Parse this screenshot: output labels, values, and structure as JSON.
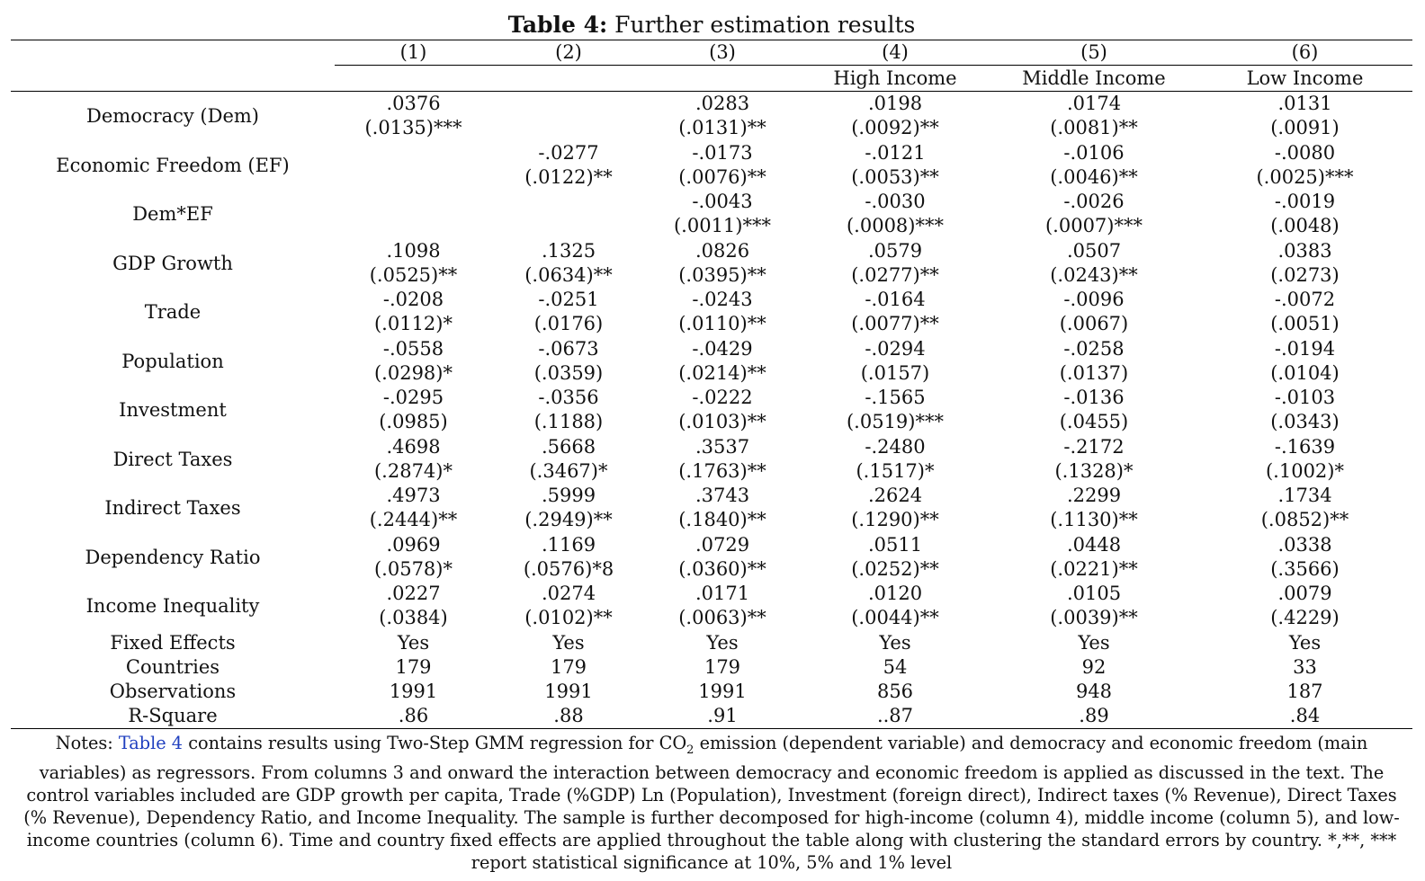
{
  "title": {
    "bold": "Table 4:",
    "rest": " Further estimation results"
  },
  "columns": [
    "(1)",
    "(2)",
    "(3)",
    "(4)",
    "(5)",
    "(6)"
  ],
  "subheaders": [
    "",
    "",
    "",
    "High Income",
    "Middle Income",
    "Low Income"
  ],
  "rows": [
    {
      "label": "Democracy (Dem)",
      "cells": [
        [
          ".0376",
          "(.0135)***"
        ],
        [
          "",
          ""
        ],
        [
          ".0283",
          "(.0131)**"
        ],
        [
          ".0198",
          "(.0092)**"
        ],
        [
          ".0174",
          "(.0081)**"
        ],
        [
          ".0131",
          "(.0091)"
        ]
      ]
    },
    {
      "label": "Economic Freedom (EF)",
      "cells": [
        [
          "",
          ""
        ],
        [
          "-.0277",
          "(.0122)**"
        ],
        [
          "-.0173",
          "(.0076)**"
        ],
        [
          "-.0121",
          "(.0053)**"
        ],
        [
          "-.0106",
          "(.0046)**"
        ],
        [
          "-.0080",
          "(.0025)***"
        ]
      ]
    },
    {
      "label": "Dem*EF",
      "cells": [
        [
          "",
          ""
        ],
        [
          "",
          ""
        ],
        [
          "-.0043",
          "(.0011)***"
        ],
        [
          "-.0030",
          "(.0008)***"
        ],
        [
          "-.0026",
          "(.0007)***"
        ],
        [
          "-.0019",
          "(.0048)"
        ]
      ]
    },
    {
      "label": "GDP Growth",
      "cells": [
        [
          ".1098",
          "(.0525)**"
        ],
        [
          ".1325",
          "(.0634)**"
        ],
        [
          ".0826",
          "(.0395)**"
        ],
        [
          ".0579",
          "(.0277)**"
        ],
        [
          ".0507",
          "(.0243)**"
        ],
        [
          ".0383",
          "(.0273)"
        ]
      ]
    },
    {
      "label": "Trade",
      "cells": [
        [
          "-.0208",
          "(.0112)*"
        ],
        [
          "-.0251",
          "(.0176)"
        ],
        [
          "-.0243",
          "(.0110)**"
        ],
        [
          "-.0164",
          "(.0077)**"
        ],
        [
          "-.0096",
          "(.0067)"
        ],
        [
          "-.0072",
          "(.0051)"
        ]
      ]
    },
    {
      "label": "Population",
      "cells": [
        [
          "-.0558",
          "(.0298)*"
        ],
        [
          "-.0673",
          "(.0359)"
        ],
        [
          "-.0429",
          "(.0214)**"
        ],
        [
          "-.0294",
          "(.0157)"
        ],
        [
          "-.0258",
          "(.0137)"
        ],
        [
          "-.0194",
          "(.0104)"
        ]
      ]
    },
    {
      "label": "Investment",
      "cells": [
        [
          "-.0295",
          "(.0985)"
        ],
        [
          "-.0356",
          "(.1188)"
        ],
        [
          "-.0222",
          "(.0103)**"
        ],
        [
          "-.1565",
          "(.0519)***"
        ],
        [
          "-.0136",
          "(.0455)"
        ],
        [
          "-.0103",
          "(.0343)"
        ]
      ]
    },
    {
      "label": "Direct Taxes",
      "cells": [
        [
          ".4698",
          "(.2874)*"
        ],
        [
          ".5668",
          "(.3467)*"
        ],
        [
          ".3537",
          "(.1763)**"
        ],
        [
          "-.2480",
          "(.1517)*"
        ],
        [
          "-.2172",
          "(.1328)*"
        ],
        [
          "-.1639",
          "(.1002)*"
        ]
      ]
    },
    {
      "label": "Indirect Taxes",
      "cells": [
        [
          ".4973",
          "(.2444)**"
        ],
        [
          ".5999",
          "(.2949)**"
        ],
        [
          ".3743",
          "(.1840)**"
        ],
        [
          ".2624",
          "(.1290)**"
        ],
        [
          ".2299",
          "(.1130)**"
        ],
        [
          ".1734",
          "(.0852)**"
        ]
      ]
    },
    {
      "label": "Dependency Ratio",
      "cells": [
        [
          ".0969",
          "(.0578)*"
        ],
        [
          ".1169",
          "(.0576)*8"
        ],
        [
          ".0729",
          "(.0360)**"
        ],
        [
          ".0511",
          "(.0252)**"
        ],
        [
          ".0448",
          "(.0221)**"
        ],
        [
          ".0338",
          "(.3566)"
        ]
      ]
    },
    {
      "label": "Income Inequality",
      "cells": [
        [
          ".0227",
          "(.0384)"
        ],
        [
          ".0274",
          "(.0102)**"
        ],
        [
          ".0171",
          "(.0063)**"
        ],
        [
          ".0120",
          "(.0044)**"
        ],
        [
          ".0105",
          "(.0039)**"
        ],
        [
          ".0079",
          "(.4229)"
        ]
      ]
    }
  ],
  "summary": [
    {
      "label": "Fixed Effects",
      "cells": [
        "Yes",
        "Yes",
        "Yes",
        "Yes",
        "Yes",
        "Yes"
      ]
    },
    {
      "label": "Countries",
      "cells": [
        "179",
        "179",
        "179",
        "54",
        "92",
        "33"
      ]
    },
    {
      "label": "Observations",
      "cells": [
        "1991",
        "1991",
        "1991",
        "856",
        "948",
        "187"
      ]
    },
    {
      "label": "R-Square",
      "cells": [
        ".86",
        ".88",
        ".91",
        "..87",
        ".89",
        ".84"
      ]
    }
  ],
  "notes": {
    "prefix": "Notes: ",
    "link": "Table 4",
    "part1": " contains results using Two-Step GMM regression for CO",
    "sub": "2",
    "part2": " emission (dependent variable) and democracy and economic freedom (main variables) as regressors. From columns 3 and onward the interaction between democracy and economic freedom is applied as discussed in the text. The control variables included are GDP growth per capita, Trade (%GDP) Ln (Population), Investment (foreign direct), Indirect taxes (% Revenue), Direct Taxes (% Revenue), Dependency Ratio, and Income Inequality. The sample is further decomposed for high-income (column 4), middle income (column 5), and low-income countries (column 6). Time and country fixed effects are applied throughout the table along with clustering the standard errors by country. *,**, *** report statistical significance at 10%, 5% and 1% level"
  }
}
